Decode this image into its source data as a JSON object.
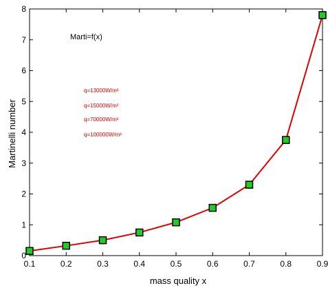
{
  "chart_data": {
    "type": "line",
    "title": "Marti=f(x)",
    "xlabel": "mass quality x",
    "ylabel": "Martinelli  number",
    "xlim": [
      0.1,
      0.9
    ],
    "ylim": [
      0,
      8
    ],
    "xticks": [
      0.1,
      0.2,
      0.3,
      0.4,
      0.5,
      0.6,
      0.7,
      0.8,
      0.9
    ],
    "yticks": [
      0,
      1,
      2,
      3,
      4,
      5,
      6,
      7,
      8
    ],
    "grid": false,
    "series": [
      {
        "x": [
          0.1,
          0.2,
          0.3,
          0.4,
          0.5,
          0.6,
          0.7,
          0.8,
          0.9
        ],
        "y": [
          0.15,
          0.32,
          0.5,
          0.75,
          1.08,
          1.55,
          2.3,
          3.75,
          7.8
        ],
        "line_color": "#e00000",
        "marker_color": "#22cc22",
        "marker_edge_color": "#000000",
        "marker": "square"
      }
    ],
    "annotations": [
      "q=13000W/m²",
      "q=15000W/m²",
      "q=70000W/m²",
      "q=100000W/m²"
    ],
    "annotation_color": "#e00000"
  }
}
